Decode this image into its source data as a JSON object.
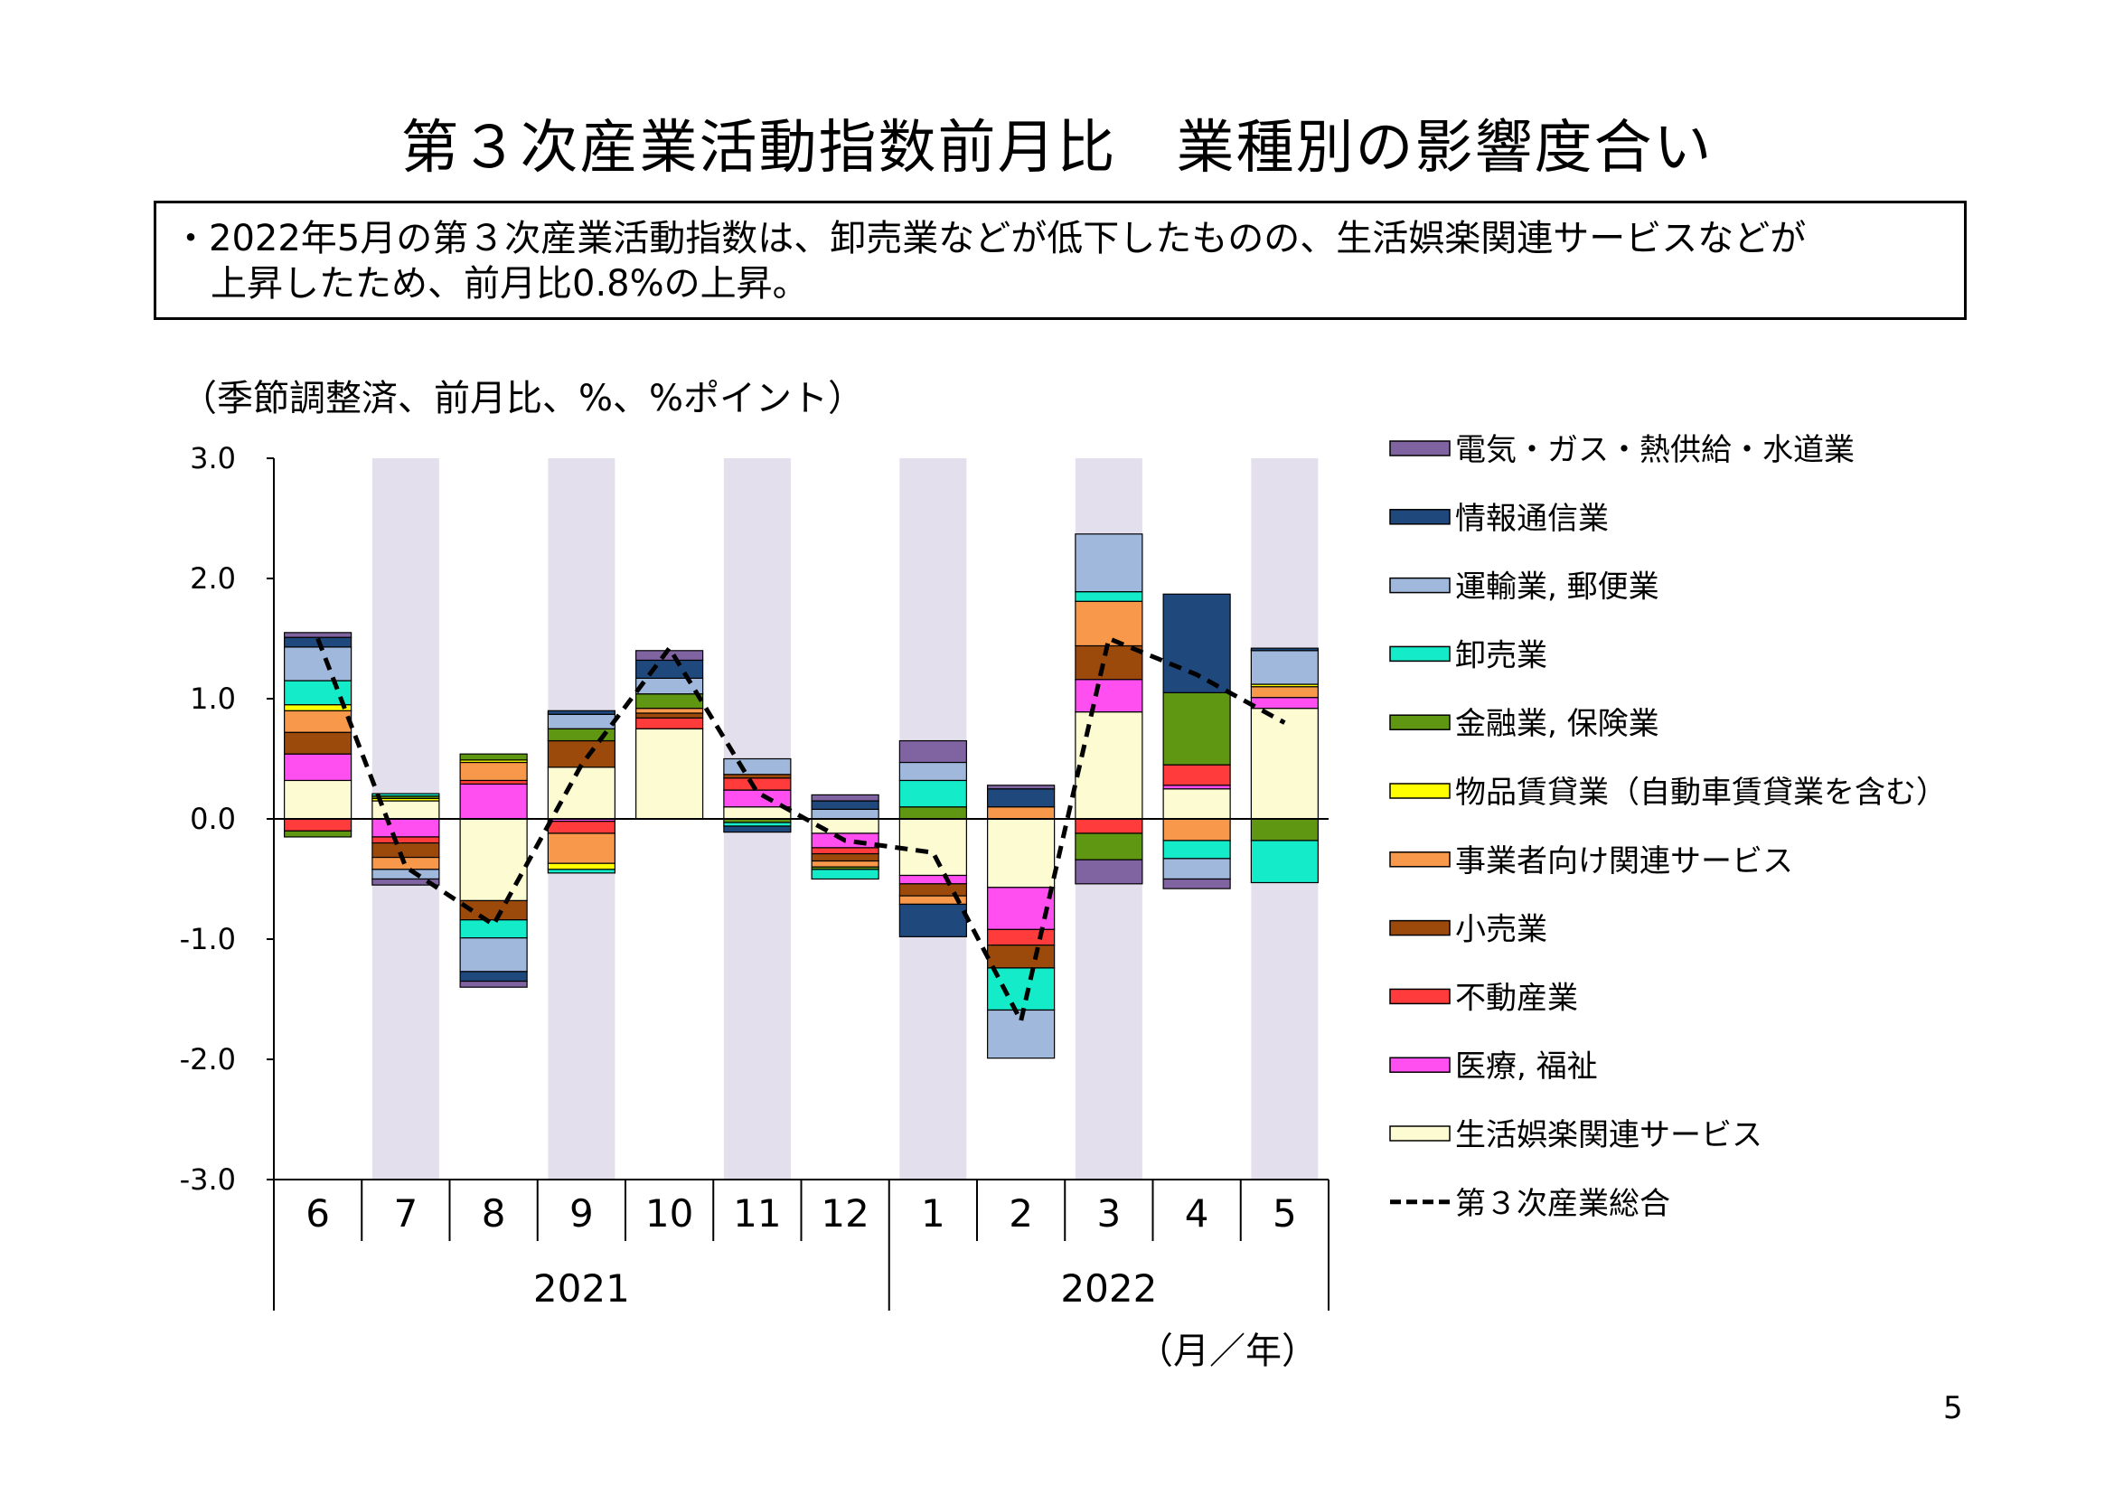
{
  "page": {
    "title": "第３次産業活動指数前月比　業種別の影響度合い",
    "summary_line1": "・2022年5月の第３次産業活動指数は、卸売業などが低下したものの、生活娯楽関連サービスなどが",
    "summary_line2": "上昇したため、前月比0.8%の上昇。",
    "unit_note": "（季節調整済、前月比、%、%ポイント）",
    "page_number": "5"
  },
  "colors": {
    "shade": "#e4dfec",
    "axis": "#000000"
  },
  "chart_data": {
    "type": "bar",
    "stacked": true,
    "title": "",
    "xlabel": "（月／年）",
    "ylabel": "",
    "ylim": [
      -3.0,
      3.0
    ],
    "yticks": [
      "3.0",
      "2.0",
      "1.0",
      "0.0",
      "-1.0",
      "-2.0",
      "-3.0"
    ],
    "ytick_values": [
      3,
      2,
      1,
      0,
      -1,
      -2,
      -3
    ],
    "categories": [
      "6",
      "7",
      "8",
      "9",
      "10",
      "11",
      "12",
      "1",
      "2",
      "3",
      "4",
      "5"
    ],
    "years": [
      {
        "label": "2021",
        "months": 7
      },
      {
        "label": "2022",
        "months": 5
      }
    ],
    "shaded_categories": [
      "7",
      "9",
      "11",
      "1",
      "3",
      "5"
    ],
    "series": [
      {
        "name": "生活娯楽関連サービス",
        "color": "#fdfbd2",
        "values": [
          0.32,
          0.15,
          -0.68,
          0.43,
          0.75,
          0.1,
          -0.12,
          -0.47,
          -0.57,
          0.89,
          0.25,
          0.92
        ]
      },
      {
        "name": "医療, 福祉",
        "color": "#ff4ff0",
        "values": [
          0.22,
          -0.15,
          0.29,
          -0.02,
          0.0,
          0.14,
          -0.12,
          -0.07,
          -0.35,
          0.27,
          0.03,
          0.09
        ]
      },
      {
        "name": "不動産業",
        "color": "#ff3b3b",
        "values": [
          -0.1,
          -0.05,
          0.03,
          -0.1,
          0.09,
          0.1,
          -0.05,
          0.0,
          -0.13,
          -0.12,
          0.17,
          0.0
        ]
      },
      {
        "name": "小売業",
        "color": "#9c4a0c",
        "values": [
          0.18,
          -0.12,
          -0.16,
          0.22,
          0.04,
          0.03,
          -0.06,
          -0.1,
          -0.19,
          0.28,
          0.0,
          0.0
        ]
      },
      {
        "name": "事業者向け関連サービス",
        "color": "#f7984a",
        "values": [
          0.18,
          -0.1,
          0.15,
          -0.25,
          0.04,
          0.0,
          -0.05,
          -0.07,
          0.1,
          0.37,
          -0.18,
          0.09
        ]
      },
      {
        "name": "物品賃貸業（自動車賃貸業を含む）",
        "color": "#ffff00",
        "values": [
          0.05,
          0.02,
          0.02,
          -0.05,
          0.0,
          0.0,
          0.0,
          0.0,
          0.0,
          0.0,
          0.0,
          0.02
        ]
      },
      {
        "name": "金融業, 保険業",
        "color": "#5f9612",
        "values": [
          -0.05,
          0.02,
          0.05,
          0.1,
          0.12,
          -0.03,
          -0.02,
          0.1,
          0.0,
          -0.22,
          0.6,
          -0.18
        ]
      },
      {
        "name": "卸売業",
        "color": "#14ebc8",
        "values": [
          0.2,
          0.02,
          -0.15,
          -0.03,
          0.0,
          -0.03,
          -0.08,
          0.22,
          -0.35,
          0.08,
          -0.15,
          -0.35
        ]
      },
      {
        "name": "運輸業, 郵便業",
        "color": "#9fb8db",
        "values": [
          0.28,
          -0.08,
          -0.28,
          0.12,
          0.13,
          0.13,
          0.08,
          0.15,
          -0.4,
          0.48,
          -0.17,
          0.28
        ]
      },
      {
        "name": "情報通信業",
        "color": "#1f497d",
        "values": [
          0.08,
          0.0,
          -0.08,
          0.03,
          0.15,
          -0.05,
          0.07,
          -0.27,
          0.15,
          0.0,
          0.82,
          0.02
        ]
      },
      {
        "name": "電気・ガス・熱供給・水道業",
        "color": "#8064a2",
        "values": [
          0.04,
          -0.05,
          -0.05,
          0.0,
          0.08,
          0.0,
          0.05,
          0.18,
          0.03,
          -0.2,
          -0.08,
          0.0
        ]
      }
    ],
    "total_line": {
      "name": "第３次産業総合",
      "color": "#000000",
      "values": [
        1.5,
        -0.4,
        -0.88,
        0.45,
        1.42,
        0.22,
        -0.18,
        -0.28,
        -1.68,
        1.5,
        1.2,
        0.8
      ]
    },
    "legend_order": [
      "電気・ガス・熱供給・水道業",
      "情報通信業",
      "運輸業, 郵便業",
      "卸売業",
      "金融業, 保険業",
      "物品賃貸業（自動車賃貸業を含む）",
      "事業者向け関連サービス",
      "小売業",
      "不動産業",
      "医療, 福祉",
      "生活娯楽関連サービス",
      "第３次産業総合"
    ]
  }
}
